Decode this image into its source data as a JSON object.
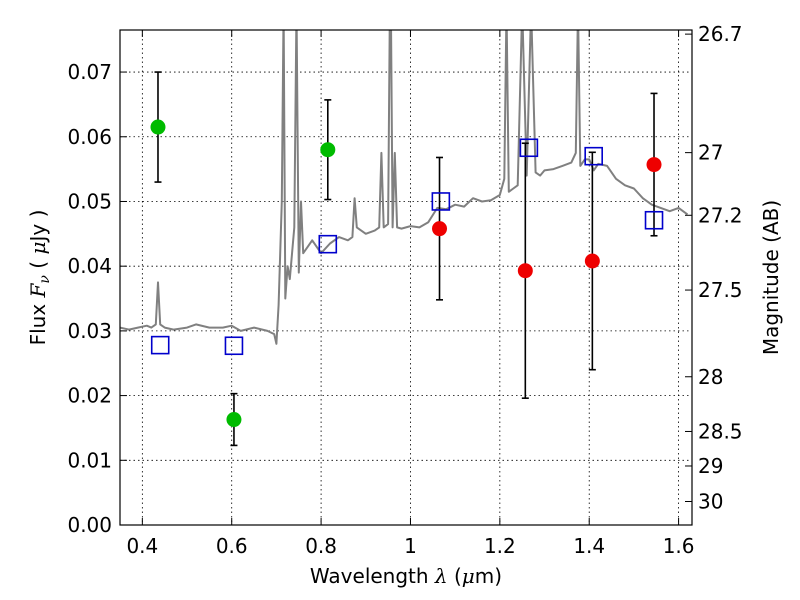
{
  "chart_data": {
    "type": "scatter",
    "title": "",
    "xlabel": "Wavelength  λ (μm)",
    "ylabel": "Flux  F_ν  ( μJy )",
    "ylabel_parts": {
      "prefix": "Flux  ",
      "var": "F",
      "sub": "ν",
      "mid": "  ( ",
      "unit_var": "μ",
      "unit": "Jy )"
    },
    "xlabel_parts": {
      "prefix": "Wavelength  ",
      "var": "λ",
      "mid": " (",
      "unit_var": "μ",
      "unit": "m)"
    },
    "y2label": "Magnitude (AB)",
    "xlim": [
      0.35,
      1.63
    ],
    "ylim": [
      0.0,
      0.0765
    ],
    "grid": true,
    "x_ticks": [
      0.4,
      0.6,
      0.8,
      1.0,
      1.2,
      1.4,
      1.6
    ],
    "x_tick_labels": [
      "0.4",
      "0.6",
      "0.8",
      "1",
      "1.2",
      "1.4",
      "1.6"
    ],
    "y_ticks": [
      0.0,
      0.01,
      0.02,
      0.03,
      0.04,
      0.05,
      0.06,
      0.07
    ],
    "y_tick_labels": [
      "0.00",
      "0.01",
      "0.02",
      "0.03",
      "0.04",
      "0.05",
      "0.06",
      "0.07"
    ],
    "y2_ticks": [
      26.7,
      27.0,
      27.2,
      27.5,
      28.0,
      28.5,
      29.0,
      30.0
    ],
    "y2_tick_labels": [
      "26.7",
      "27",
      "27.2",
      "27.5",
      "28",
      "28.5",
      "29",
      "30"
    ],
    "colors": {
      "spectrum": "#808080",
      "green_points": "#00bb00",
      "red_points": "#ee0000",
      "model_squares": "#0000cc",
      "errorbars": "#000000",
      "grid": "#000000"
    },
    "spectrum": {
      "name": "",
      "x": [
        0.35,
        0.37,
        0.39,
        0.41,
        0.42,
        0.43,
        0.435,
        0.44,
        0.45,
        0.47,
        0.5,
        0.52,
        0.55,
        0.58,
        0.6,
        0.62,
        0.65,
        0.68,
        0.695,
        0.7,
        0.705,
        0.712,
        0.716,
        0.72,
        0.725,
        0.73,
        0.74,
        0.745,
        0.75,
        0.755,
        0.76,
        0.77,
        0.78,
        0.8,
        0.82,
        0.84,
        0.86,
        0.87,
        0.875,
        0.88,
        0.9,
        0.92,
        0.93,
        0.935,
        0.94,
        0.95,
        0.955,
        0.96,
        0.965,
        0.97,
        0.98,
        1.0,
        1.02,
        1.04,
        1.06,
        1.08,
        1.1,
        1.12,
        1.14,
        1.16,
        1.18,
        1.2,
        1.21,
        1.215,
        1.22,
        1.23,
        1.24,
        1.25,
        1.26,
        1.27,
        1.28,
        1.29,
        1.3,
        1.32,
        1.34,
        1.36,
        1.37,
        1.375,
        1.38,
        1.39,
        1.4,
        1.41,
        1.42,
        1.44,
        1.46,
        1.48,
        1.5,
        1.52,
        1.54,
        1.56,
        1.58,
        1.6,
        1.62
      ],
      "y": [
        0.0305,
        0.0302,
        0.0305,
        0.0308,
        0.0305,
        0.031,
        0.0375,
        0.031,
        0.0305,
        0.0302,
        0.0305,
        0.031,
        0.0305,
        0.0305,
        0.0308,
        0.03,
        0.0305,
        0.03,
        0.0295,
        0.028,
        0.034,
        0.05,
        0.08,
        0.035,
        0.04,
        0.038,
        0.046,
        0.08,
        0.039,
        0.05,
        0.042,
        0.043,
        0.044,
        0.042,
        0.0435,
        0.0445,
        0.044,
        0.0445,
        0.0505,
        0.046,
        0.045,
        0.0455,
        0.046,
        0.0575,
        0.046,
        0.0465,
        0.09,
        0.046,
        0.0575,
        0.046,
        0.0458,
        0.0462,
        0.046,
        0.0468,
        0.049,
        0.0488,
        0.0495,
        0.0492,
        0.0505,
        0.05,
        0.0502,
        0.051,
        0.0535,
        0.08,
        0.0515,
        0.052,
        0.0525,
        0.08,
        0.054,
        0.08,
        0.0545,
        0.054,
        0.0548,
        0.055,
        0.0555,
        0.056,
        0.0575,
        0.08,
        0.0555,
        0.0565,
        0.0565,
        0.0548,
        0.0558,
        0.0555,
        0.0535,
        0.0525,
        0.052,
        0.0505,
        0.0495,
        0.049,
        0.0485,
        0.049,
        0.048
      ]
    },
    "green_points": {
      "name": "",
      "x": [
        0.435,
        0.605,
        0.815
      ],
      "y": [
        0.0615,
        0.0163,
        0.058
      ],
      "err_low": [
        0.0085,
        0.004,
        0.0077
      ],
      "err_high": [
        0.0085,
        0.004,
        0.0077
      ]
    },
    "red_points": {
      "name": "",
      "x": [
        1.065,
        1.257,
        1.407,
        1.545
      ],
      "y": [
        0.0458,
        0.0393,
        0.0408,
        0.0557
      ],
      "err_low": [
        0.011,
        0.0197,
        0.0168,
        0.011
      ],
      "err_high": [
        0.011,
        0.0197,
        0.0168,
        0.011
      ]
    },
    "model_squares": {
      "name": "",
      "x": [
        0.44,
        0.605,
        0.815,
        1.068,
        1.265,
        1.41,
        1.545
      ],
      "y": [
        0.0278,
        0.0277,
        0.0434,
        0.05,
        0.0583,
        0.057,
        0.0471
      ]
    }
  }
}
